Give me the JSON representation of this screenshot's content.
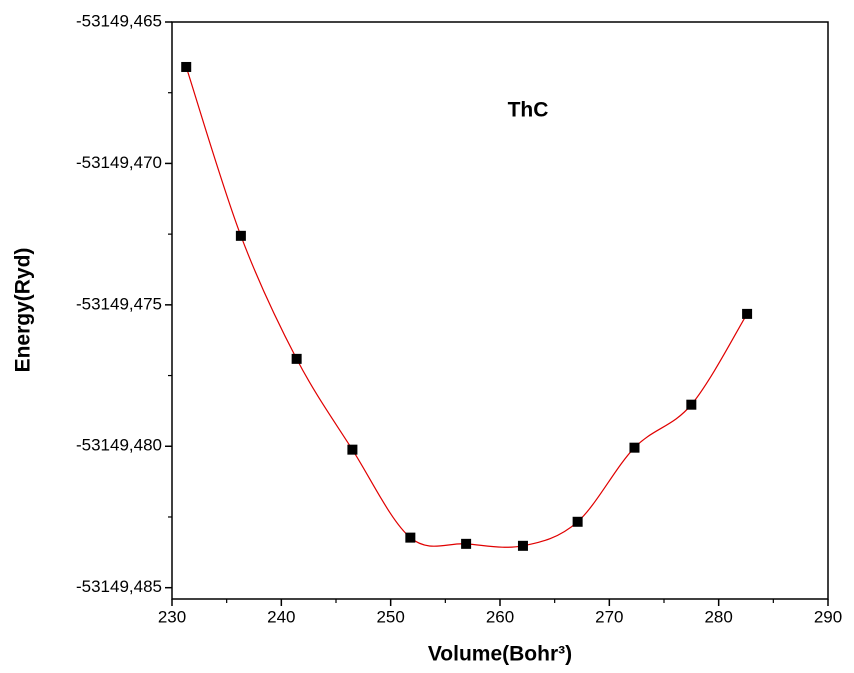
{
  "chart_data": {
    "type": "scatter",
    "title": "ThC",
    "xlabel": "Volume(Bohr³)",
    "ylabel": "Energy(Ryd)",
    "x": [
      231.3,
      236.3,
      241.4,
      246.5,
      251.8,
      256.9,
      262.1,
      267.1,
      272.3,
      277.5,
      282.6
    ],
    "series": [
      {
        "name": "ThC",
        "color": "#000000",
        "line_color": "#e00000",
        "values": [
          -53149.46659,
          -53149.47256,
          -53149.47691,
          -53149.48012,
          -53149.48323,
          -53149.48345,
          -53149.48352,
          -53149.48267,
          -53149.48005,
          -53149.47853,
          -53149.47532
        ]
      }
    ],
    "xlim": [
      230,
      290
    ],
    "xticks": [
      230,
      240,
      250,
      260,
      270,
      280,
      290
    ],
    "ylim": [
      -53149.4854,
      -53149.465
    ],
    "yticks": [
      {
        "value": -53149.465,
        "label": "-53149,465"
      },
      {
        "value": -53149.47,
        "label": "-53149,470"
      },
      {
        "value": -53149.475,
        "label": "-53149,475"
      },
      {
        "value": -53149.48,
        "label": "-53149,480"
      },
      {
        "value": -53149.485,
        "label": "-53149,485"
      }
    ],
    "title_color": "#e00000",
    "grid": false
  }
}
